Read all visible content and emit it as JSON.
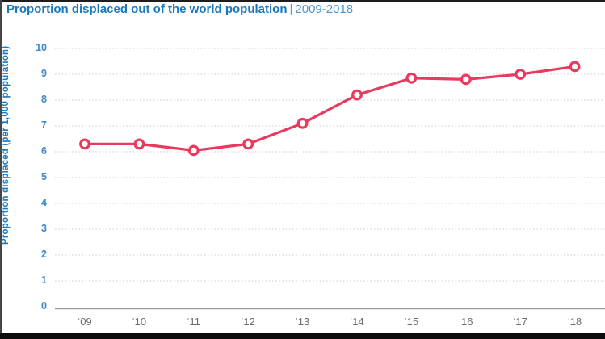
{
  "header": {
    "title": "Proportion displaced out of the world population",
    "separator": "|",
    "subtitle": "2009-2018"
  },
  "colors": {
    "title_blue": "#1878be",
    "subtitle_blue": "#4e95cc",
    "tick_blue": "#4189c7",
    "ylabel_blue": "#1e78bf",
    "line_pink": "#e8395e",
    "marker_fill": "#ffffff",
    "grid_gray": "#cdcdcd",
    "axis_gray": "#9b9b9b",
    "xlabel_gray": "#6d6d6d",
    "letterbox_black": "#0d0d0d"
  },
  "chart_data": {
    "type": "line",
    "title": "Proportion displaced out of the world population | 2009-2018",
    "x": [
      "‘09",
      "‘10",
      "‘11",
      "‘12",
      "‘13",
      "‘14",
      "‘15",
      "‘16",
      "‘17",
      "‘18"
    ],
    "series": [
      {
        "name": "Proportion displaced (per 1,000 population)",
        "values": [
          6.3,
          6.3,
          6.05,
          6.3,
          7.1,
          8.2,
          8.85,
          8.8,
          9.0,
          9.3
        ]
      }
    ],
    "xlabel": "",
    "ylabel": "Proportion displaced (per 1,000 population)",
    "ylim": [
      0,
      10
    ],
    "yticks": [
      0,
      1,
      2,
      3,
      4,
      5,
      6,
      7,
      8,
      9,
      10
    ],
    "grid": "horizontal-dotted",
    "marker": "open-circle",
    "legend": "none"
  }
}
